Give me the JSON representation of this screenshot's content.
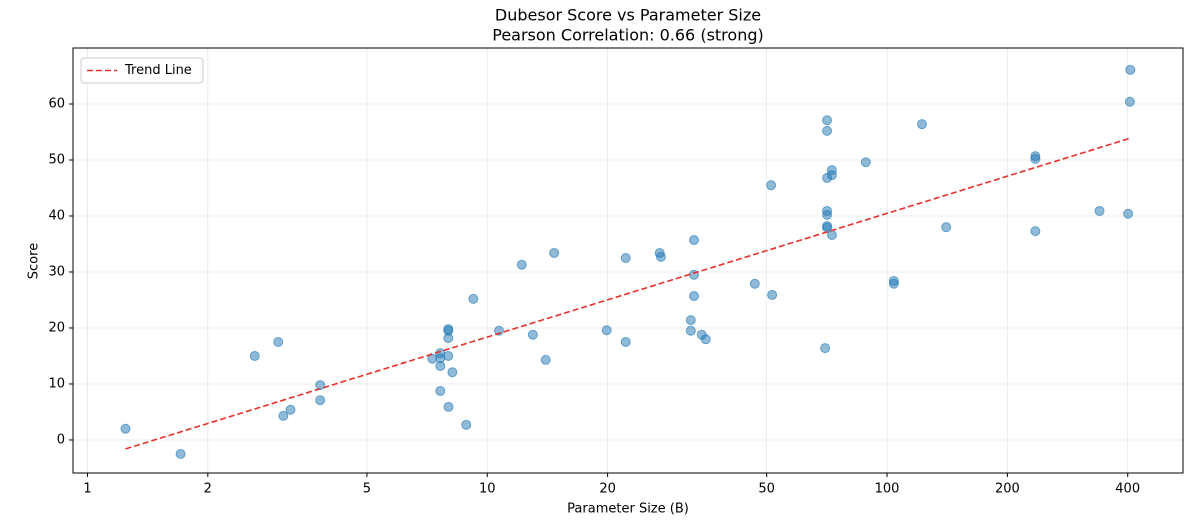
{
  "chart_data": {
    "type": "scatter",
    "title": "Dubesor Score vs Parameter Size",
    "subtitle": "Pearson Correlation: 0.66 (strong)",
    "x_label": "Parameter Size (B)",
    "y_label": "Score",
    "x_scale": "log",
    "color": "#1f77b4",
    "grid": true,
    "legend_position": "upper-left",
    "x": [
      1.245,
      1.71,
      2.62,
      3.0,
      3.09,
      3.22,
      3.82,
      3.82,
      7.29,
      7.63,
      7.63,
      7.63,
      7.63,
      7.99,
      7.99,
      7.99,
      7.99,
      8.0,
      8.18,
      8.86,
      9.23,
      10.7,
      12.2,
      13.0,
      14.0,
      14.7,
      19.9,
      22.2,
      22.2,
      27.0,
      27.2,
      32.3,
      32.3,
      32.9,
      32.9,
      32.9,
      34.4,
      35.2,
      46.7,
      51.3,
      51.6,
      70.0,
      70.8,
      70.8,
      70.8,
      70.8,
      70.8,
      70.8,
      70.8,
      72.8,
      72.8,
      72.8,
      88.5,
      104.0,
      104.0,
      122.3,
      140.6,
      235,
      235,
      235,
      340,
      401,
      405,
      406
    ],
    "values": [
      2.0,
      -2.5,
      15.0,
      17.5,
      4.3,
      5.4,
      9.8,
      7.1,
      14.5,
      15.5,
      14.6,
      13.2,
      8.75,
      19.8,
      19.5,
      18.2,
      15.0,
      5.9,
      12.1,
      2.7,
      25.2,
      19.5,
      31.3,
      18.8,
      14.3,
      33.4,
      19.6,
      32.5,
      17.5,
      33.4,
      32.7,
      21.4,
      19.5,
      35.7,
      29.5,
      25.7,
      18.8,
      18.0,
      27.9,
      45.5,
      25.9,
      16.4,
      57.1,
      55.2,
      46.8,
      40.9,
      40.2,
      38.2,
      37.9,
      48.2,
      47.3,
      36.6,
      49.6,
      28.4,
      27.9,
      56.4,
      38.0,
      50.7,
      50.2,
      37.3,
      40.9,
      40.4,
      60.4,
      66.1
    ],
    "trend_line": {
      "name": "Trend Line",
      "color": "#e8302a",
      "x": [
        1.245,
        406
      ],
      "values": [
        -1.6,
        53.9
      ]
    },
    "xlim": [
      0.92,
      550
    ],
    "ylim": [
      -5.9,
      70
    ],
    "xticks": [
      1,
      2,
      5,
      10,
      20,
      50,
      100,
      200,
      400
    ],
    "yticks": [
      0,
      10,
      20,
      30,
      40,
      50,
      60
    ]
  }
}
